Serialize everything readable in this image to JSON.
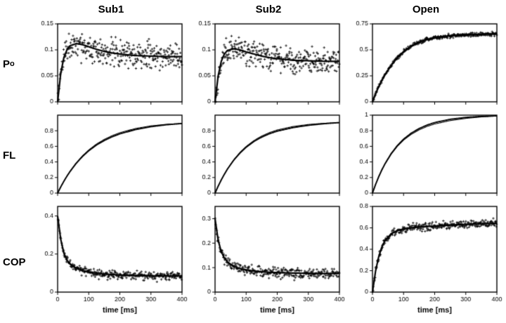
{
  "figure": {
    "background": "#ffffff",
    "line_color": "#000000",
    "col_titles": [
      "Sub1",
      "Sub2",
      "Open"
    ],
    "row_labels": [
      {
        "main": "P",
        "sub": "o"
      },
      {
        "main": "FL",
        "sub": ""
      },
      {
        "main": "COP",
        "sub": ""
      }
    ],
    "xlabel": "time [ms]"
  },
  "chart_data": [
    {
      "id": "sub1-po",
      "col": "Sub1",
      "row": "Po",
      "type": "scatter",
      "xlim": [
        0,
        400
      ],
      "xticks": [
        0,
        100,
        200,
        300,
        400
      ],
      "xtick_labels": [
        "0",
        "100",
        "200",
        "300",
        "400"
      ],
      "xlabels": false,
      "ylim": [
        0,
        0.15
      ],
      "yticks": [
        0,
        0.05,
        0.1,
        0.15
      ],
      "ytick_labels": [
        "0",
        "0.05",
        "0.1",
        "0.15"
      ],
      "curve": {
        "t": [
          0,
          10,
          20,
          30,
          40,
          60,
          80,
          100,
          125,
          150,
          175,
          200,
          250,
          300,
          350,
          400
        ],
        "y": [
          0,
          0.055,
          0.085,
          0.1,
          0.108,
          0.112,
          0.11,
          0.106,
          0.101,
          0.097,
          0.094,
          0.092,
          0.089,
          0.088,
          0.087,
          0.087
        ]
      },
      "scatter": {
        "n": 320,
        "noise_sd": 0.013,
        "seed": 11
      }
    },
    {
      "id": "sub2-po",
      "col": "Sub2",
      "row": "Po",
      "type": "scatter",
      "xlim": [
        0,
        400
      ],
      "xticks": [
        0,
        100,
        200,
        300,
        400
      ],
      "xtick_labels": [
        "0",
        "100",
        "200",
        "300",
        "400"
      ],
      "xlabels": false,
      "ylim": [
        0,
        0.15
      ],
      "yticks": [
        0,
        0.05,
        0.1,
        0.15
      ],
      "ytick_labels": [
        "0",
        "0.05",
        "0.1",
        "0.15"
      ],
      "curve": {
        "t": [
          0,
          10,
          20,
          30,
          40,
          60,
          80,
          100,
          125,
          150,
          175,
          200,
          250,
          300,
          350,
          400
        ],
        "y": [
          0,
          0.05,
          0.078,
          0.092,
          0.099,
          0.102,
          0.1,
          0.096,
          0.092,
          0.088,
          0.085,
          0.083,
          0.08,
          0.079,
          0.078,
          0.078
        ]
      },
      "scatter": {
        "n": 320,
        "noise_sd": 0.012,
        "seed": 22
      }
    },
    {
      "id": "open-po",
      "col": "Open",
      "row": "Po",
      "type": "scatter",
      "xlim": [
        0,
        400
      ],
      "xticks": [
        0,
        100,
        200,
        300,
        400
      ],
      "xtick_labels": [
        "0",
        "100",
        "200",
        "300",
        "400"
      ],
      "xlabels": false,
      "ylim": [
        0,
        0.75
      ],
      "yticks": [
        0,
        0.25,
        0.5,
        0.75
      ],
      "ytick_labels": [
        "0",
        "0.25",
        "0.5",
        "0.75"
      ],
      "curve": {
        "t": [
          0,
          10,
          20,
          30,
          40,
          60,
          80,
          100,
          125,
          150,
          175,
          200,
          250,
          300,
          350,
          400
        ],
        "y": [
          0,
          0.075,
          0.145,
          0.205,
          0.26,
          0.35,
          0.425,
          0.48,
          0.535,
          0.575,
          0.6,
          0.615,
          0.635,
          0.645,
          0.65,
          0.655
        ]
      },
      "scatter": {
        "n": 300,
        "noise_sd": 0.009,
        "seed": 33
      }
    },
    {
      "id": "sub1-fl",
      "col": "Sub1",
      "row": "FL",
      "type": "line",
      "xlim": [
        0,
        400
      ],
      "xticks": [
        0,
        100,
        200,
        300,
        400
      ],
      "xtick_labels": [
        "0",
        "100",
        "200",
        "300",
        "400"
      ],
      "xlabels": false,
      "ylim": [
        0,
        1
      ],
      "yticks": [
        0,
        0.2,
        0.4,
        0.6,
        0.8
      ],
      "ytick_labels": [
        "0",
        "0.2",
        "0.4",
        "0.6",
        "0.8"
      ],
      "curve": {
        "t": [
          0,
          10,
          20,
          30,
          40,
          60,
          80,
          100,
          125,
          150,
          175,
          200,
          250,
          300,
          350,
          400
        ],
        "y": [
          0,
          0.079,
          0.151,
          0.217,
          0.277,
          0.383,
          0.47,
          0.543,
          0.617,
          0.675,
          0.722,
          0.76,
          0.815,
          0.852,
          0.877,
          0.893
        ]
      },
      "double_line": true,
      "second_line_amp": 0.015
    },
    {
      "id": "sub2-fl",
      "col": "Sub2",
      "row": "FL",
      "type": "line",
      "xlim": [
        0,
        400
      ],
      "xticks": [
        0,
        100,
        200,
        300,
        400
      ],
      "xtick_labels": [
        "0",
        "100",
        "200",
        "300",
        "400"
      ],
      "xlabels": false,
      "ylim": [
        0,
        1
      ],
      "yticks": [
        0,
        0.2,
        0.4,
        0.6,
        0.8
      ],
      "ytick_labels": [
        "0",
        "0.2",
        "0.4",
        "0.6",
        "0.8"
      ],
      "curve": {
        "t": [
          0,
          10,
          20,
          30,
          40,
          60,
          80,
          100,
          125,
          150,
          175,
          200,
          250,
          300,
          350,
          400
        ],
        "y": [
          0,
          0.088,
          0.169,
          0.242,
          0.308,
          0.421,
          0.513,
          0.588,
          0.662,
          0.718,
          0.762,
          0.795,
          0.84,
          0.87,
          0.89,
          0.905
        ]
      },
      "double_line": true,
      "second_line_amp": 0.015
    },
    {
      "id": "open-fl",
      "col": "Open",
      "row": "FL",
      "type": "line",
      "xlim": [
        0,
        400
      ],
      "xticks": [
        0,
        100,
        200,
        300,
        400
      ],
      "xtick_labels": [
        "0",
        "100",
        "200",
        "300",
        "400"
      ],
      "xlabels": false,
      "ylim": [
        0,
        1
      ],
      "yticks": [
        0,
        0.2,
        0.4,
        0.6,
        0.8,
        1
      ],
      "ytick_labels": [
        "0",
        "0.2",
        "0.4",
        "0.6",
        "0.8",
        "1"
      ],
      "curve": {
        "t": [
          0,
          10,
          20,
          30,
          40,
          60,
          80,
          100,
          125,
          150,
          175,
          200,
          250,
          300,
          350,
          400
        ],
        "y": [
          0,
          0.111,
          0.21,
          0.297,
          0.375,
          0.506,
          0.61,
          0.692,
          0.77,
          0.828,
          0.872,
          0.905,
          0.947,
          0.971,
          0.984,
          0.991
        ]
      },
      "double_line": true,
      "second_line_amp": -0.018
    },
    {
      "id": "sub1-cop",
      "col": "Sub1",
      "row": "COP",
      "type": "scatter",
      "xlim": [
        0,
        400
      ],
      "xticks": [
        0,
        100,
        200,
        300,
        400
      ],
      "xtick_labels": [
        "0",
        "100",
        "200",
        "300",
        "400"
      ],
      "xlabels": true,
      "xlabel": "time [ms]",
      "ylim": [
        0,
        0.45
      ],
      "yticks": [
        0,
        0.2,
        0.4
      ],
      "ytick_labels": [
        "0",
        "0.2",
        "0.4"
      ],
      "curve": {
        "t": [
          0,
          10,
          20,
          30,
          40,
          60,
          80,
          100,
          125,
          150,
          175,
          200,
          250,
          300,
          350,
          400
        ],
        "y": [
          0.4,
          0.277,
          0.205,
          0.168,
          0.148,
          0.125,
          0.113,
          0.106,
          0.099,
          0.095,
          0.092,
          0.09,
          0.087,
          0.086,
          0.085,
          0.085
        ]
      },
      "scatter": {
        "n": 300,
        "noise_sd": 0.011,
        "seed": 44
      }
    },
    {
      "id": "sub2-cop",
      "col": "Sub2",
      "row": "COP",
      "type": "scatter",
      "xlim": [
        0,
        400
      ],
      "xticks": [
        0,
        100,
        200,
        300,
        400
      ],
      "xtick_labels": [
        "0",
        "100",
        "200",
        "300",
        "400"
      ],
      "xlabels": true,
      "xlabel": "time [ms]",
      "ylim": [
        0,
        0.35
      ],
      "yticks": [
        0,
        0.1,
        0.2,
        0.3
      ],
      "ytick_labels": [
        "0",
        "0.1",
        "0.2",
        "0.3"
      ],
      "curve": {
        "t": [
          0,
          10,
          20,
          30,
          40,
          60,
          80,
          100,
          125,
          150,
          175,
          200,
          250,
          300,
          350,
          400
        ],
        "y": [
          0.3,
          0.212,
          0.165,
          0.139,
          0.123,
          0.105,
          0.096,
          0.091,
          0.086,
          0.083,
          0.081,
          0.08,
          0.078,
          0.077,
          0.076,
          0.076
        ]
      },
      "scatter": {
        "n": 300,
        "noise_sd": 0.01,
        "seed": 55
      }
    },
    {
      "id": "open-cop",
      "col": "Open",
      "row": "COP",
      "type": "scatter",
      "xlim": [
        0,
        400
      ],
      "xticks": [
        0,
        100,
        200,
        300,
        400
      ],
      "xtick_labels": [
        "0",
        "100",
        "200",
        "300",
        "400"
      ],
      "xlabels": true,
      "xlabel": "time [ms]",
      "ylim": [
        0,
        0.8
      ],
      "yticks": [
        0,
        0.2,
        0.4,
        0.6,
        0.8
      ],
      "ytick_labels": [
        "0",
        "0.2",
        "0.4",
        "0.6",
        "0.8"
      ],
      "curve": {
        "t": [
          0,
          10,
          20,
          30,
          40,
          60,
          80,
          100,
          125,
          150,
          175,
          200,
          250,
          300,
          350,
          400
        ],
        "y": [
          0,
          0.197,
          0.33,
          0.42,
          0.48,
          0.545,
          0.575,
          0.59,
          0.6,
          0.607,
          0.612,
          0.617,
          0.625,
          0.632,
          0.638,
          0.643
        ]
      },
      "scatter": {
        "n": 300,
        "noise_sd": 0.018,
        "seed": 66
      }
    }
  ]
}
